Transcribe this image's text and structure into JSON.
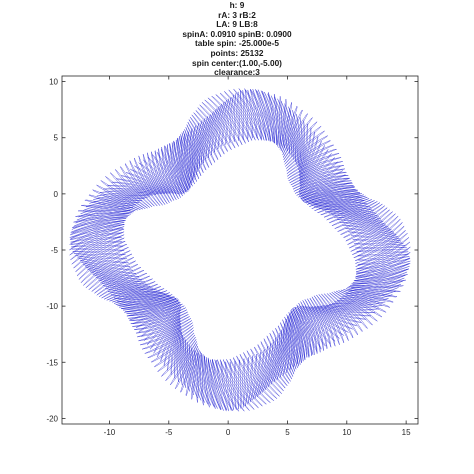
{
  "title_lines": [
    "h: 9",
    "rA: 3 rB:2",
    "LA: 9 LB:8",
    "spinA: 0.0910 spinB: 0.0900",
    "table spin: -25.000e-5",
    "points: 25132",
    "spin center:(1.00,-5.00)",
    "clearance:3"
  ],
  "chart_data": {
    "type": "line",
    "title": "h: 9 | rA: 3 rB:2 | LA: 9 LB:8 | spinA: 0.0910 spinB: 0.0900 | table spin: -25.000e-5 | points: 25132 | spin center:(1.00,-5.00) | clearance:3",
    "xlabel": "",
    "ylabel": "",
    "xlim": [
      -14,
      16
    ],
    "ylim": [
      -20.5,
      10.5
    ],
    "x_ticks": [
      -10,
      -5,
      0,
      5,
      10,
      15
    ],
    "y_ticks": [
      10,
      5,
      0,
      -5,
      -10,
      -15,
      -20
    ],
    "grid": false,
    "legend": "none",
    "series_color": "#0000cc",
    "curve": {
      "form": "rotating four-lobed ring traced by a dense spirograph curve",
      "center": [
        1.0,
        -5.0
      ],
      "lobes": 4,
      "mean_radius": 10.6,
      "radial_amplitude": 1.6,
      "band_width": 4.4,
      "twist": 0.35,
      "phase": 0.55,
      "sampled_points": 2400
    }
  }
}
